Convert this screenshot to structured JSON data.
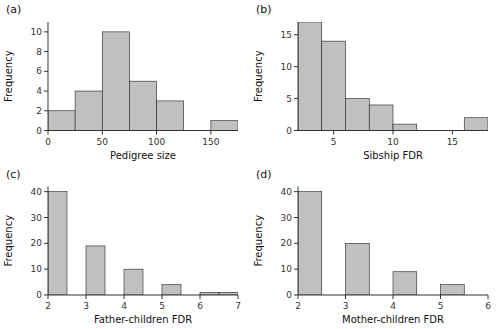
{
  "chart_data": [
    {
      "type": "histogram",
      "title": "(a)",
      "xlabel": "Pedigree size",
      "ylabel": "Frequency",
      "bins": [
        0,
        25,
        50,
        75,
        100,
        125,
        150,
        175
      ],
      "values": [
        2,
        4,
        10,
        5,
        3,
        0,
        1
      ],
      "color": "#c0c0c0",
      "xlim": [
        0,
        175
      ],
      "ylim": [
        0,
        11
      ],
      "xticks": [
        0,
        50,
        100,
        150
      ],
      "yticks": [
        0,
        2,
        4,
        6,
        8,
        10
      ]
    },
    {
      "type": "histogram",
      "title": "(b)",
      "xlabel": "Sibship FDR",
      "ylabel": "Frequency",
      "bins": [
        2,
        4,
        6,
        8,
        10,
        12,
        14,
        16,
        18
      ],
      "values": [
        17,
        14,
        5,
        4,
        1,
        0,
        0,
        2
      ],
      "color": "#c0c0c0",
      "xlim": [
        2,
        18
      ],
      "ylim": [
        0,
        17
      ],
      "xticks": [
        5,
        10,
        15
      ],
      "yticks": [
        0,
        5,
        10,
        15
      ]
    },
    {
      "type": "histogram",
      "title": "(c)",
      "xlabel": "Father-children FDR",
      "ylabel": "Frequency",
      "bins": [
        2,
        2.5,
        3,
        3.5,
        4,
        4.5,
        5,
        5.5,
        6,
        6.5,
        7
      ],
      "values": [
        40,
        0,
        19,
        0,
        10,
        0,
        4,
        0,
        1,
        1
      ],
      "color": "#c0c0c0",
      "xlim": [
        2,
        7
      ],
      "ylim": [
        0,
        42
      ],
      "xticks": [
        2,
        3,
        4,
        5,
        6,
        7
      ],
      "yticks": [
        0,
        10,
        20,
        30,
        40
      ]
    },
    {
      "type": "histogram",
      "title": "(d)",
      "xlabel": "Mother-children FDR",
      "ylabel": "Frequency",
      "bins": [
        2,
        2.5,
        3,
        3.5,
        4,
        4.5,
        5,
        5.5,
        6
      ],
      "values": [
        40,
        0,
        20,
        0,
        9,
        0,
        4,
        0
      ],
      "color": "#c0c0c0",
      "xlim": [
        2,
        6
      ],
      "ylim": [
        0,
        42
      ],
      "xticks": [
        2,
        3,
        4,
        5,
        6
      ],
      "yticks": [
        0,
        10,
        20,
        30,
        40
      ]
    }
  ]
}
